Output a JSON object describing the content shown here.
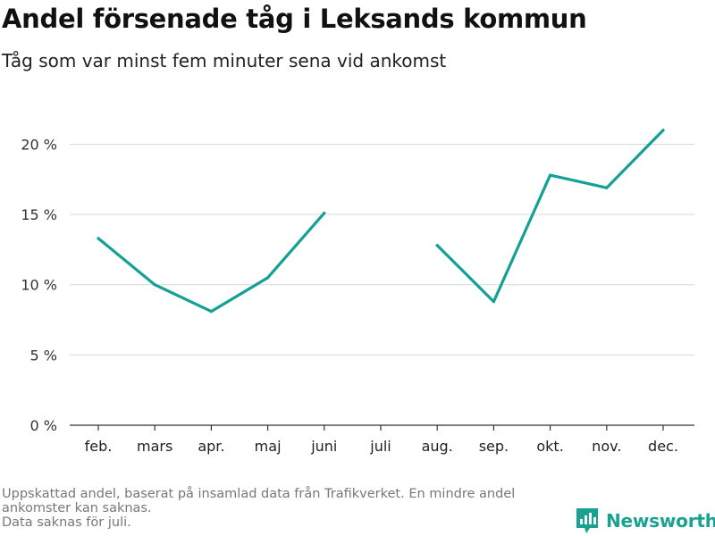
{
  "title": "Andel försenade tåg i Leksands kommun",
  "subtitle": "Tåg som var minst fem minuter sena vid ankomst",
  "footnote_lines": [
    "Uppskattad andel, baserat på insamlad data från Trafikverket. En mindre andel ankomster kan saknas.",
    "Data saknas för juli."
  ],
  "brand": {
    "name": "Newsworthy",
    "icon": "newsworthy-logo-icon"
  },
  "colors": {
    "line": "#13a095",
    "grid": "#d9d9d9",
    "axis": "#333333",
    "brand": "#19a291"
  },
  "chart_data": {
    "type": "line",
    "title": "Andel försenade tåg i Leksands kommun",
    "subtitle": "Tåg som var minst fem minuter sena vid ankomst",
    "xlabel": "",
    "ylabel": "",
    "categories": [
      "feb.",
      "mars",
      "apr.",
      "maj",
      "juni",
      "juli",
      "aug.",
      "sep.",
      "okt.",
      "nov.",
      "dec."
    ],
    "series": [
      {
        "values": [
          13.3,
          10.0,
          8.1,
          10.5,
          15.1,
          null,
          12.8,
          8.8,
          17.8,
          16.9,
          21.0
        ]
      }
    ],
    "yticks": [
      0,
      5,
      10,
      15,
      20
    ],
    "ytick_labels": [
      "0 %",
      "5 %",
      "10 %",
      "15 %",
      "20 %"
    ],
    "ylim": [
      0,
      22
    ],
    "grid": true,
    "legend": "none",
    "gaps": "null values break the line"
  }
}
